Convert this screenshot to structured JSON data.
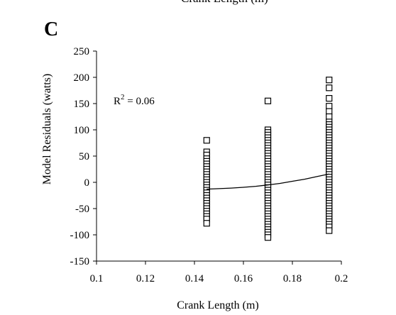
{
  "figure": {
    "clipped_top_text": "Crank Length (m)",
    "panel_label": "C"
  },
  "chart_data": {
    "type": "scatter",
    "title": "",
    "xlabel": "Crank Length (m)",
    "ylabel": "Model Residuals (watts)",
    "xlim": [
      0.1,
      0.2
    ],
    "ylim": [
      -150,
      250
    ],
    "x_ticks": [
      0.1,
      0.12,
      0.14,
      0.16,
      0.18,
      0.2
    ],
    "x_tick_labels": [
      "0.1",
      "0.12",
      "0.14",
      "0.16",
      "0.18",
      "0.2"
    ],
    "y_ticks": [
      250,
      200,
      150,
      100,
      50,
      0,
      -50,
      -100,
      -150
    ],
    "y_tick_labels": [
      "250",
      "200",
      "150",
      "100",
      "50",
      "0",
      "-50",
      "-100",
      "-150"
    ],
    "annotation": {
      "base": "R",
      "superscript": "2",
      "rest": " = 0.06"
    },
    "marker": "open-square",
    "series": [
      {
        "x": 0.145,
        "y": [
          80,
          58,
          52,
          45,
          40,
          35,
          30,
          25,
          20,
          15,
          10,
          5,
          0,
          -5,
          -10,
          -15,
          -20,
          -25,
          -30,
          -35,
          -40,
          -45,
          -50,
          -55,
          -60,
          -65,
          -70,
          -78
        ]
      },
      {
        "x": 0.17,
        "y": [
          155,
          100,
          95,
          90,
          85,
          80,
          75,
          70,
          65,
          60,
          55,
          50,
          45,
          40,
          35,
          30,
          25,
          20,
          15,
          10,
          5,
          0,
          -5,
          -10,
          -15,
          -20,
          -25,
          -30,
          -35,
          -40,
          -45,
          -50,
          -55,
          -60,
          -65,
          -70,
          -75,
          -80,
          -85,
          -90,
          -95,
          -100,
          -105
        ]
      },
      {
        "x": 0.195,
        "y": [
          195,
          180,
          160,
          145,
          135,
          125,
          115,
          110,
          105,
          100,
          95,
          90,
          85,
          80,
          75,
          70,
          65,
          60,
          55,
          50,
          45,
          40,
          35,
          30,
          25,
          20,
          15,
          10,
          5,
          0,
          -5,
          -10,
          -15,
          -20,
          -25,
          -30,
          -35,
          -40,
          -45,
          -50,
          -55,
          -60,
          -65,
          -70,
          -75,
          -80,
          -85,
          -92
        ]
      }
    ],
    "fit_line": {
      "x": [
        0.145,
        0.15,
        0.155,
        0.16,
        0.165,
        0.17,
        0.175,
        0.18,
        0.185,
        0.19,
        0.195
      ],
      "y": [
        -13,
        -12,
        -11,
        -9.5,
        -7.5,
        -5,
        -2,
        2,
        6,
        11,
        16
      ]
    }
  }
}
